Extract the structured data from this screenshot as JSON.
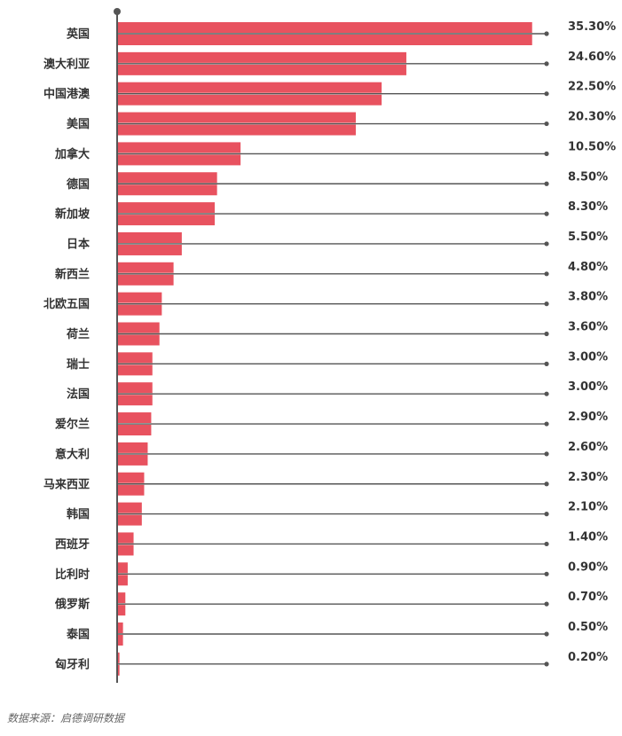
{
  "chart_data": {
    "type": "bar",
    "orientation": "horizontal",
    "categories": [
      "英国",
      "澳大利亚",
      "中国港澳",
      "美国",
      "加拿大",
      "德国",
      "新加坡",
      "日本",
      "新西兰",
      "北欧五国",
      "荷兰",
      "瑞士",
      "法国",
      "爱尔兰",
      "意大利",
      "马来西亚",
      "韩国",
      "西班牙",
      "比利时",
      "俄罗斯",
      "泰国",
      "匈牙利"
    ],
    "values": [
      35.3,
      24.6,
      22.5,
      20.3,
      10.5,
      8.5,
      8.3,
      5.5,
      4.8,
      3.8,
      3.6,
      3.0,
      3.0,
      2.9,
      2.6,
      2.3,
      2.1,
      1.4,
      0.9,
      0.7,
      0.5,
      0.2
    ],
    "value_labels": [
      "35.30%",
      "24.60%",
      "22.50%",
      "20.30%",
      "10.50%",
      "8.50%",
      "8.30%",
      "5.50%",
      "4.80%",
      "3.80%",
      "3.60%",
      "3.00%",
      "3.00%",
      "2.90%",
      "2.60%",
      "2.30%",
      "2.10%",
      "1.40%",
      "0.90%",
      "0.70%",
      "0.50%",
      "0.20%"
    ],
    "unit": "%",
    "legend": "none",
    "grid": false,
    "colors": {
      "bar": "#e8525f",
      "leader": "#555555",
      "axis": "#555555",
      "label": "#333333"
    }
  },
  "footer": {
    "source": "数据来源：启德调研数据"
  }
}
